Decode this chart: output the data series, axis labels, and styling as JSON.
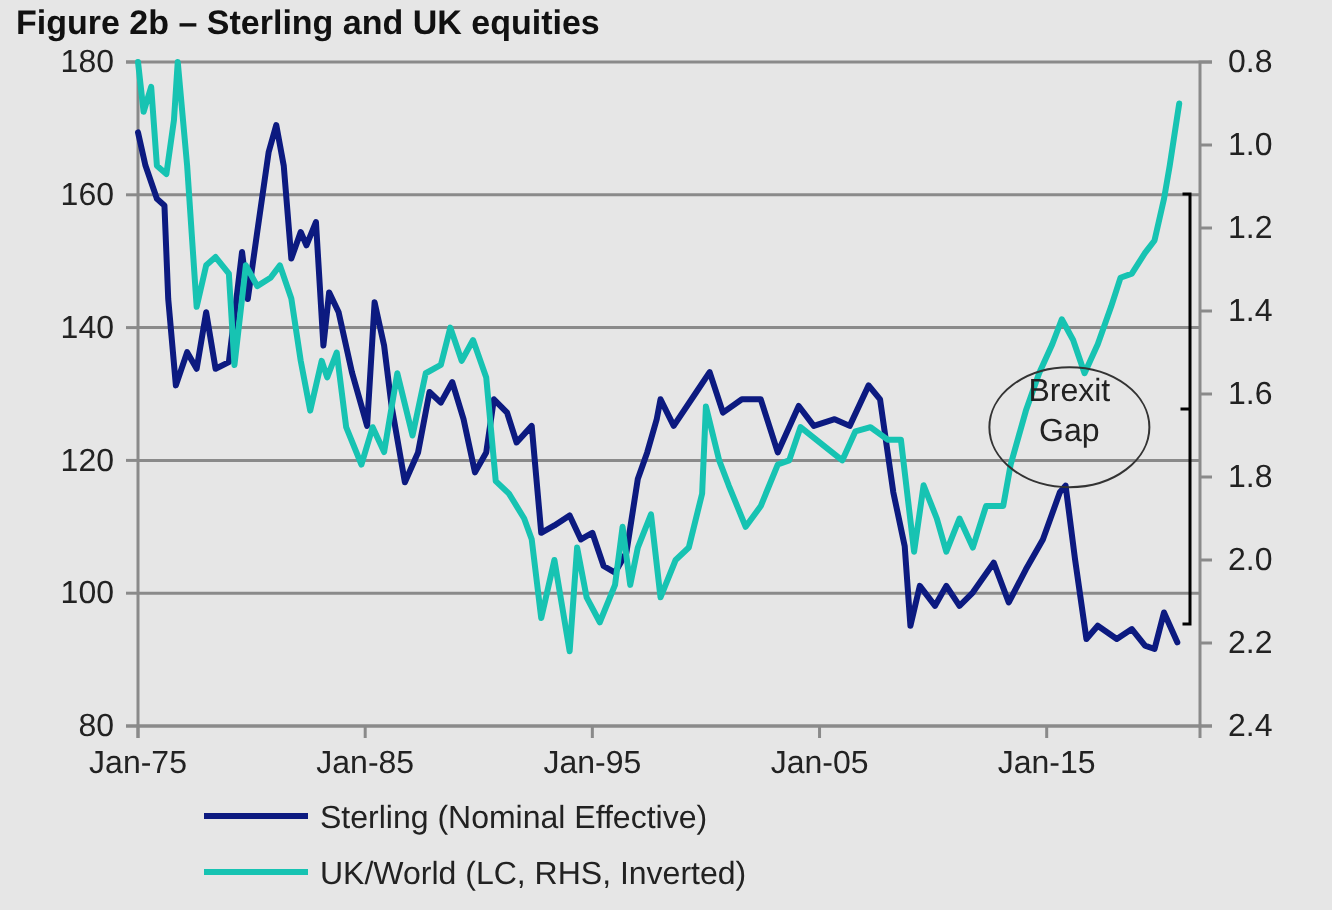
{
  "chart_data": {
    "type": "line",
    "title": "Figure 2b – Sterling and UK equities",
    "xlim": [
      "1975-01",
      "2021-10"
    ],
    "xticks": [
      {
        "value": "1975-01",
        "label": "Jan-75"
      },
      {
        "value": "1985-01",
        "label": "Jan-85"
      },
      {
        "value": "1995-01",
        "label": "Jan-95"
      },
      {
        "value": "2005-01",
        "label": "Jan-05"
      },
      {
        "value": "2015-01",
        "label": "Jan-15"
      }
    ],
    "ylim": [
      80,
      180
    ],
    "yticks": [
      80,
      100,
      120,
      140,
      160,
      180
    ],
    "y2lim": [
      2.4,
      0.8
    ],
    "y2ticks": [
      {
        "value": 2.4,
        "label": "2.4"
      },
      {
        "value": 2.2,
        "label": "2.2"
      },
      {
        "value": 2.0,
        "label": "2.0"
      },
      {
        "value": 1.8,
        "label": "1.8"
      },
      {
        "value": 1.6,
        "label": "1.6"
      },
      {
        "value": 1.4,
        "label": "1.4"
      },
      {
        "value": 1.2,
        "label": "1.2"
      },
      {
        "value": 1.0,
        "label": "1.0"
      },
      {
        "value": 0.8,
        "label": "0.8"
      }
    ],
    "grid": "y",
    "legend": "bottom",
    "line_style": "solid",
    "marker": "none",
    "annotations": [
      "Brexit Gap"
    ],
    "series": [
      {
        "name": "Sterling (Nominal Effective)",
        "color": "#0c1a80",
        "x": [
          "1975-01",
          "1975-05",
          "1975-11",
          "1976-03",
          "1976-05",
          "1976-09",
          "1977-03",
          "1977-08",
          "1978-01",
          "1978-06",
          "1979-01",
          "1979-08",
          "1979-11",
          "1980-04",
          "1980-10",
          "1981-02",
          "1981-06",
          "1981-10",
          "1982-03",
          "1982-06",
          "1982-11",
          "1983-03",
          "1983-06",
          "1983-11",
          "1984-06",
          "1985-02",
          "1985-06",
          "1985-11",
          "1986-03",
          "1986-10",
          "1987-05",
          "1987-11",
          "1988-05",
          "1988-11",
          "1989-05",
          "1989-11",
          "1990-05",
          "1990-09",
          "1991-04",
          "1991-09",
          "1992-05",
          "1992-10",
          "1993-05",
          "1994-01",
          "1994-07",
          "1995-01",
          "1995-07",
          "1996-01",
          "1996-07",
          "1997-01",
          "1997-06",
          "1997-11",
          "1998-01",
          "1998-08",
          "1999-08",
          "2000-03",
          "2000-10",
          "2001-08",
          "2002-06",
          "2003-03",
          "2004-02",
          "2004-10",
          "2005-09",
          "2006-05",
          "2007-03",
          "2007-09",
          "2008-04",
          "2008-10",
          "2009-01",
          "2009-06",
          "2010-02",
          "2010-08",
          "2011-03",
          "2011-10",
          "2012-09",
          "2013-05",
          "2014-02",
          "2014-11",
          "2015-08",
          "2015-11",
          "2016-04",
          "2016-10",
          "2017-04",
          "2018-02",
          "2018-10",
          "2019-05",
          "2019-10",
          "2020-03",
          "2020-10"
        ],
        "values": [
          169.4,
          164.4,
          159.4,
          158.4,
          144.3,
          131.3,
          136.3,
          133.8,
          142.3,
          133.8,
          134.8,
          151.4,
          144.3,
          154.4,
          166.4,
          170.5,
          164.4,
          150.4,
          154.4,
          152.4,
          155.9,
          137.3,
          145.3,
          142.3,
          133.3,
          125.2,
          143.8,
          137.3,
          128.2,
          116.7,
          121.2,
          130.3,
          128.7,
          131.8,
          126.2,
          118.2,
          121.2,
          129.2,
          127.2,
          122.7,
          125.2,
          109.1,
          110.2,
          111.7,
          108.1,
          109.1,
          104.1,
          103.1,
          106.1,
          117.2,
          121.2,
          126.2,
          129.2,
          125.2,
          130.3,
          133.3,
          127.2,
          129.2,
          129.2,
          121.2,
          128.2,
          125.2,
          126.2,
          125.2,
          131.3,
          129.2,
          115.2,
          107.1,
          95.1,
          101.1,
          98.1,
          101.1,
          98.1,
          100.1,
          104.6,
          98.6,
          103.6,
          108.1,
          115.2,
          116.2,
          105.1,
          93.1,
          95.1,
          93.1,
          94.6,
          92.1,
          91.6,
          97.1,
          92.6
        ]
      },
      {
        "name": "UK/World (LC, RHS, Inverted)",
        "color": "#17c3b2",
        "axis": "y2",
        "x": [
          "1975-01",
          "1975-04",
          "1975-08",
          "1975-11",
          "1976-04",
          "1976-08",
          "1976-10",
          "1977-03",
          "1977-08",
          "1978-01",
          "1978-06",
          "1979-01",
          "1979-04",
          "1979-10",
          "1980-04",
          "1980-11",
          "1981-04",
          "1981-10",
          "1982-03",
          "1982-08",
          "1983-02",
          "1983-05",
          "1983-10",
          "1984-03",
          "1984-11",
          "1985-05",
          "1985-11",
          "1986-06",
          "1987-02",
          "1987-09",
          "1988-05",
          "1988-10",
          "1989-04",
          "1989-10",
          "1990-05",
          "1990-10",
          "1991-05",
          "1992-01",
          "1992-05",
          "1992-10",
          "1993-05",
          "1994-01",
          "1994-05",
          "1994-10",
          "1995-05",
          "1996-01",
          "1996-05",
          "1996-09",
          "1997-01",
          "1997-08",
          "1998-01",
          "1998-09",
          "1999-04",
          "1999-11",
          "2000-01",
          "2000-08",
          "2001-01",
          "2001-10",
          "2002-06",
          "2003-03",
          "2003-09",
          "2004-03",
          "2005-02",
          "2006-01",
          "2006-08",
          "2007-04",
          "2008-01",
          "2008-08",
          "2009-03",
          "2009-08",
          "2010-03",
          "2010-08",
          "2011-03",
          "2011-10",
          "2012-05",
          "2013-02",
          "2013-06",
          "2014-02",
          "2014-09",
          "2015-04",
          "2015-09",
          "2016-03",
          "2016-09",
          "2017-04",
          "2017-11",
          "2018-04",
          "2018-10",
          "2019-05",
          "2019-10",
          "2020-03",
          "2020-06",
          "2020-11"
        ],
        "values": [
          0.8,
          0.92,
          0.86,
          1.05,
          1.07,
          0.94,
          0.8,
          1.05,
          1.39,
          1.29,
          1.27,
          1.31,
          1.53,
          1.29,
          1.34,
          1.32,
          1.29,
          1.37,
          1.52,
          1.64,
          1.52,
          1.56,
          1.5,
          1.68,
          1.77,
          1.68,
          1.74,
          1.55,
          1.7,
          1.55,
          1.53,
          1.44,
          1.52,
          1.47,
          1.56,
          1.81,
          1.84,
          1.9,
          1.95,
          2.14,
          2.0,
          2.22,
          1.97,
          2.09,
          2.15,
          2.06,
          1.92,
          2.06,
          1.97,
          1.89,
          2.09,
          2.0,
          1.97,
          1.84,
          1.63,
          1.76,
          1.82,
          1.92,
          1.87,
          1.77,
          1.76,
          1.68,
          1.72,
          1.76,
          1.69,
          1.68,
          1.71,
          1.71,
          1.98,
          1.82,
          1.9,
          1.98,
          1.9,
          1.97,
          1.87,
          1.87,
          1.77,
          1.64,
          1.55,
          1.48,
          1.42,
          1.47,
          1.55,
          1.48,
          1.39,
          1.32,
          1.31,
          1.26,
          1.23,
          1.13,
          1.05,
          0.9
        ]
      }
    ]
  }
}
